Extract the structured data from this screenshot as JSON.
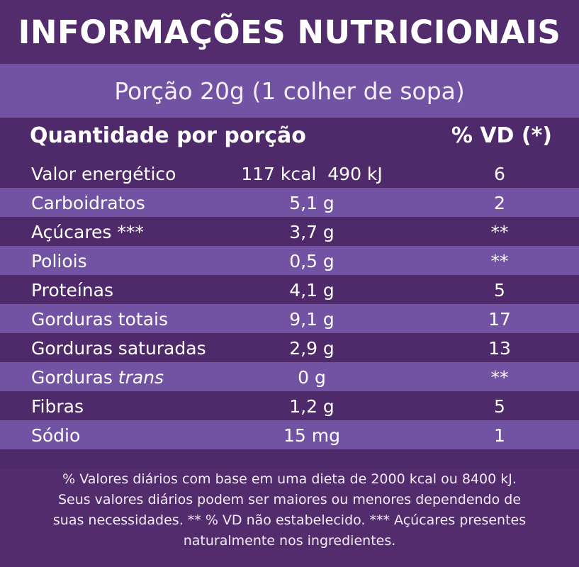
{
  "title": "INFORMAÇÕES NUTRICIONAIS",
  "portion": "Porção 20g (1 colher de sopa)",
  "header": {
    "quantity": "Quantidade por porção",
    "daily_value": "% VD (*)"
  },
  "rows": [
    {
      "name": "Valor energético",
      "amount": "117 kcal  490 kJ",
      "dv": "6"
    },
    {
      "name": "Carboidratos",
      "amount": "5,1 g",
      "dv": "2"
    },
    {
      "name": "Açúcares ***",
      "amount": "3,7 g",
      "dv": "**"
    },
    {
      "name": "Poliois",
      "amount": "0,5 g",
      "dv": "**"
    },
    {
      "name": "Proteínas",
      "amount": "4,1 g",
      "dv": "5"
    },
    {
      "name": "Gorduras totais",
      "amount": "9,1 g",
      "dv": "17"
    },
    {
      "name": "Gorduras saturadas",
      "amount": "2,9 g",
      "dv": "13"
    },
    {
      "name_prefix": "Gorduras ",
      "name_italic": "trans",
      "amount": "0 g",
      "dv": "**"
    },
    {
      "name": "Fibras",
      "amount": "1,2 g",
      "dv": "5"
    },
    {
      "name": "Sódio",
      "amount": "15 mg",
      "dv": "1"
    }
  ],
  "footnote": {
    "line1": "% Valores diários com base em uma dieta de 2000 kcal ou 8400 kJ.",
    "line2": "Seus valores diários podem ser maiores ou menores dependendo de",
    "line3": "suas necessidades. ** % VD não estabelecido. *** Açúcares presentes",
    "line4": "naturalmente nos ingredientes."
  },
  "colors": {
    "dark_purple": "#4f2a6a",
    "light_purple": "#7253a3",
    "text": "#ffffff"
  }
}
